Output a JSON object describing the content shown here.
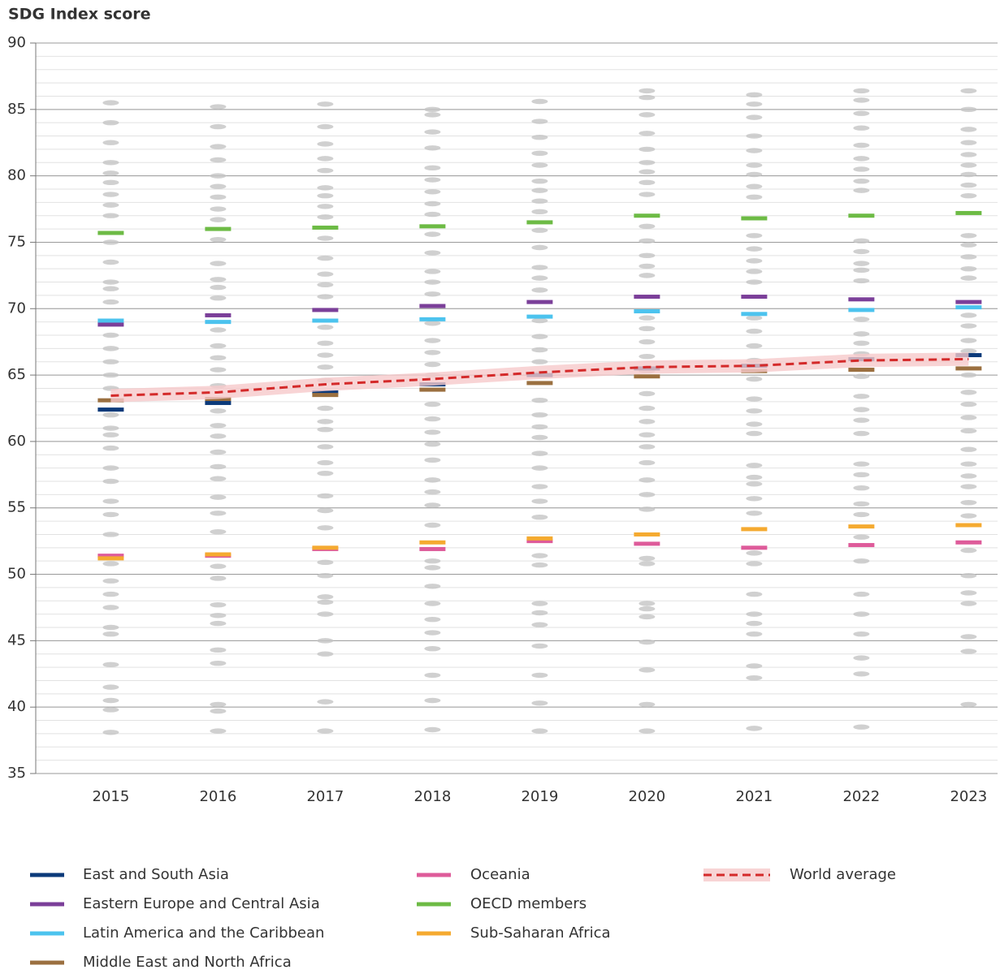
{
  "chart_data": {
    "type": "line",
    "y_axis_label": "SDG Index score",
    "x": [
      2015,
      2016,
      2017,
      2018,
      2019,
      2020,
      2021,
      2022,
      2023
    ],
    "xlim": [
      2014.3,
      2023.27
    ],
    "ylim": [
      35,
      90
    ],
    "yticks": [
      35,
      40,
      45,
      50,
      55,
      60,
      65,
      70,
      75,
      80,
      85,
      90
    ],
    "minor_grid_step": 1,
    "grid": true,
    "legend": "bottom",
    "countries_color": "#c4c4c4",
    "countries": [
      [
        85.5,
        84,
        82.5,
        81,
        80.2,
        79.5,
        78.6,
        77.8,
        77,
        75,
        73.5,
        72,
        71.5,
        70.5,
        68,
        67,
        66,
        65,
        64,
        62,
        61,
        60.5,
        59.5,
        58,
        57,
        55.5,
        54.5,
        53,
        50.8,
        49.5,
        48.5,
        47.5,
        46,
        45.5,
        43.2,
        41.5,
        40.5,
        39.8,
        38.1
      ],
      [
        85.2,
        83.7,
        82.2,
        81.2,
        80,
        79.2,
        78.4,
        77.5,
        76.7,
        75.2,
        73.4,
        72.2,
        71.6,
        70.8,
        68.4,
        67.2,
        66.3,
        65.4,
        64.2,
        62.3,
        61.2,
        60.4,
        59.2,
        58.1,
        57.2,
        55.8,
        54.6,
        53.2,
        50.6,
        49.7,
        47.7,
        46.9,
        46.3,
        44.3,
        43.3,
        40.2,
        39.7,
        38.2
      ],
      [
        85.4,
        83.7,
        82.4,
        81.3,
        80.4,
        79.1,
        78.5,
        77.7,
        76.9,
        75.3,
        73.8,
        72.6,
        71.8,
        70.9,
        68.6,
        67.4,
        66.5,
        65.6,
        64.6,
        62.5,
        61.5,
        60.9,
        59.6,
        58.4,
        57.6,
        55.9,
        54.8,
        53.5,
        50.9,
        49.9,
        48.3,
        47.9,
        47,
        45,
        44,
        40.4,
        38.2
      ],
      [
        85,
        84.6,
        83.3,
        82.1,
        80.6,
        79.7,
        78.8,
        77.9,
        77.1,
        75.6,
        74.2,
        72.8,
        72,
        71.1,
        68.9,
        67.6,
        66.7,
        65.8,
        65,
        62.8,
        61.7,
        60.7,
        59.8,
        58.6,
        57.1,
        56.2,
        55.2,
        53.7,
        51,
        50.5,
        49.1,
        47.8,
        46.6,
        45.6,
        44.4,
        42.4,
        40.5,
        38.3
      ],
      [
        85.6,
        84.1,
        82.9,
        81.7,
        80.8,
        79.6,
        78.9,
        78.1,
        77.3,
        75.9,
        74.6,
        73.1,
        72.3,
        71.4,
        69.1,
        67.9,
        66.9,
        66,
        65.1,
        63.1,
        62,
        61.1,
        60.3,
        59.1,
        58,
        56.6,
        55.5,
        54.3,
        51.4,
        50.7,
        47.8,
        47.1,
        46.2,
        44.6,
        42.4,
        40.3,
        38.2
      ],
      [
        86.4,
        85.9,
        84.6,
        83.2,
        82,
        81,
        80.3,
        79.5,
        78.6,
        76.2,
        75.1,
        74,
        73.2,
        72.5,
        69.3,
        68.5,
        67.5,
        66.4,
        65.3,
        63.6,
        62.5,
        61.5,
        60.5,
        59.6,
        58.4,
        57.1,
        56,
        54.9,
        51.2,
        50.8,
        47.8,
        47.4,
        46.8,
        44.9,
        42.8,
        40.2,
        38.2
      ],
      [
        86.1,
        85.4,
        84.4,
        83,
        81.9,
        80.8,
        80.1,
        79.2,
        78.4,
        75.5,
        74.5,
        73.6,
        72.8,
        72,
        69.3,
        68.3,
        67.2,
        66.1,
        64.7,
        63.2,
        62.3,
        61.3,
        60.6,
        58.2,
        57.3,
        56.8,
        55.7,
        54.6,
        51.6,
        50.8,
        48.5,
        47,
        46.3,
        45.5,
        43.1,
        42.2,
        38.4
      ],
      [
        86.4,
        85.7,
        84.7,
        83.6,
        82.3,
        81.3,
        80.5,
        79.6,
        78.9,
        75.1,
        74.3,
        73.4,
        72.9,
        72.1,
        69.2,
        68.1,
        67.4,
        66.6,
        64.9,
        63.4,
        62.4,
        61.6,
        60.6,
        58.3,
        57.5,
        56.5,
        55.3,
        54.5,
        52.8,
        51,
        48.5,
        47,
        45.5,
        43.7,
        42.5,
        38.5
      ],
      [
        86.4,
        85,
        83.5,
        82.5,
        81.6,
        80.8,
        80.1,
        79.3,
        78.5,
        75.5,
        74.8,
        73.9,
        73,
        72.3,
        69.5,
        68.7,
        67.6,
        66.8,
        65,
        63.7,
        62.8,
        61.8,
        60.8,
        59.4,
        58.3,
        57.4,
        56.6,
        55.4,
        54.4,
        51.8,
        49.9,
        48.6,
        47.8,
        45.3,
        44.2,
        40.2
      ]
    ],
    "series": [
      {
        "name": "East and South Asia",
        "color": "#0b3a7a",
        "values": [
          62.4,
          62.9,
          63.7,
          64.3,
          65.0,
          65.5,
          65.7,
          66.2,
          66.5
        ]
      },
      {
        "name": "Eastern Europe and Central Asia",
        "color": "#7b3f99",
        "values": [
          68.8,
          69.5,
          69.9,
          70.2,
          70.5,
          70.9,
          70.9,
          70.7,
          70.5
        ]
      },
      {
        "name": "Latin America and the Caribbean",
        "color": "#4cc3ee",
        "values": [
          69.1,
          69.0,
          69.1,
          69.2,
          69.4,
          69.8,
          69.6,
          69.9,
          70.1
        ]
      },
      {
        "name": "Middle East and North Africa",
        "color": "#9b7040",
        "values": [
          63.1,
          63.2,
          63.5,
          63.9,
          64.4,
          64.9,
          65.3,
          65.4,
          65.5
        ]
      },
      {
        "name": "Oceania",
        "color": "#de5b9a",
        "values": [
          51.4,
          51.4,
          51.9,
          51.9,
          52.5,
          52.3,
          52.0,
          52.2,
          52.4
        ]
      },
      {
        "name": "OECD members",
        "color": "#6dbb45",
        "values": [
          75.7,
          76.0,
          76.1,
          76.2,
          76.5,
          77.0,
          76.8,
          77.0,
          77.2
        ]
      },
      {
        "name": "Sub-Saharan Africa",
        "color": "#f5aa30",
        "values": [
          51.2,
          51.5,
          52.0,
          52.4,
          52.7,
          53.0,
          53.4,
          53.6,
          53.7
        ]
      },
      {
        "name": "World average",
        "color": "#d42a2a",
        "dashed": true,
        "band": 0.5,
        "band_color": "#f6c9cb",
        "values": [
          63.45,
          63.7,
          64.3,
          64.7,
          65.2,
          65.6,
          65.7,
          66.1,
          66.2
        ]
      }
    ]
  }
}
